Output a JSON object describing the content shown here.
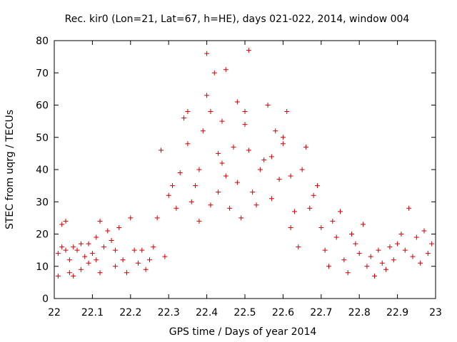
{
  "chart_data": {
    "type": "scatter",
    "title": "Rec. kir0 (Lon=21, Lat=67, h=HE), days 021-022, 2014, window 004",
    "xlabel": "GPS time / Days of year 2014",
    "ylabel": "STEC from uqrg / TECUs",
    "xlim": [
      22,
      23
    ],
    "ylim": [
      0,
      80
    ],
    "xticks": [
      22,
      22.1,
      22.2,
      22.3,
      22.4,
      22.5,
      22.6,
      22.7,
      22.8,
      22.9,
      23
    ],
    "xtick_labels": [
      "22",
      "22.1",
      "22.2",
      "22.3",
      "22.4",
      "22.5",
      "22.6",
      "22.7",
      "22.8",
      "22.9",
      "23"
    ],
    "yticks": [
      0,
      10,
      20,
      30,
      40,
      50,
      60,
      70,
      80
    ],
    "ytick_labels": [
      "0",
      "10",
      "20",
      "30",
      "40",
      "50",
      "60",
      "70",
      "80"
    ],
    "marker": "plus",
    "color": "#cc0000",
    "series": [
      {
        "name": "STEC",
        "points": [
          [
            22.01,
            7
          ],
          [
            22.01,
            14
          ],
          [
            22.02,
            16
          ],
          [
            22.02,
            23
          ],
          [
            22.03,
            24
          ],
          [
            22.03,
            15
          ],
          [
            22.04,
            8
          ],
          [
            22.04,
            12
          ],
          [
            22.05,
            16
          ],
          [
            22.05,
            7
          ],
          [
            22.06,
            15
          ],
          [
            22.07,
            9
          ],
          [
            22.07,
            17
          ],
          [
            22.08,
            13
          ],
          [
            22.09,
            11
          ],
          [
            22.09,
            17
          ],
          [
            22.1,
            14
          ],
          [
            22.11,
            12
          ],
          [
            22.11,
            19
          ],
          [
            22.12,
            8
          ],
          [
            22.12,
            24
          ],
          [
            22.13,
            16
          ],
          [
            22.14,
            21
          ],
          [
            22.15,
            18
          ],
          [
            22.16,
            10
          ],
          [
            22.16,
            15
          ],
          [
            22.17,
            22
          ],
          [
            22.18,
            12
          ],
          [
            22.19,
            8
          ],
          [
            22.2,
            25
          ],
          [
            22.21,
            15
          ],
          [
            22.22,
            11
          ],
          [
            22.23,
            15
          ],
          [
            22.24,
            9
          ],
          [
            22.25,
            12
          ],
          [
            22.26,
            16
          ],
          [
            22.27,
            25
          ],
          [
            22.28,
            46
          ],
          [
            22.29,
            13
          ],
          [
            22.3,
            32
          ],
          [
            22.31,
            35
          ],
          [
            22.32,
            28
          ],
          [
            22.33,
            39
          ],
          [
            22.34,
            56
          ],
          [
            22.35,
            48
          ],
          [
            22.35,
            58
          ],
          [
            22.36,
            30
          ],
          [
            22.37,
            35
          ],
          [
            22.38,
            40
          ],
          [
            22.38,
            24
          ],
          [
            22.39,
            52
          ],
          [
            22.4,
            63
          ],
          [
            22.4,
            76
          ],
          [
            22.41,
            58
          ],
          [
            22.41,
            29
          ],
          [
            22.42,
            70
          ],
          [
            22.43,
            45
          ],
          [
            22.43,
            33
          ],
          [
            22.44,
            55
          ],
          [
            22.44,
            42
          ],
          [
            22.45,
            71
          ],
          [
            22.45,
            38
          ],
          [
            22.46,
            28
          ],
          [
            22.47,
            47
          ],
          [
            22.48,
            61
          ],
          [
            22.48,
            36
          ],
          [
            22.49,
            25
          ],
          [
            22.5,
            58
          ],
          [
            22.5,
            54
          ],
          [
            22.51,
            77
          ],
          [
            22.51,
            46
          ],
          [
            22.52,
            33
          ],
          [
            22.53,
            29
          ],
          [
            22.54,
            40
          ],
          [
            22.55,
            43
          ],
          [
            22.56,
            60
          ],
          [
            22.57,
            44
          ],
          [
            22.57,
            31
          ],
          [
            22.58,
            52
          ],
          [
            22.59,
            37
          ],
          [
            22.6,
            48
          ],
          [
            22.6,
            50
          ],
          [
            22.61,
            58
          ],
          [
            22.62,
            38
          ],
          [
            22.62,
            22
          ],
          [
            22.63,
            27
          ],
          [
            22.64,
            16
          ],
          [
            22.65,
            40
          ],
          [
            22.66,
            47
          ],
          [
            22.67,
            28
          ],
          [
            22.68,
            32
          ],
          [
            22.69,
            35
          ],
          [
            22.7,
            22
          ],
          [
            22.71,
            15
          ],
          [
            22.72,
            10
          ],
          [
            22.73,
            24
          ],
          [
            22.74,
            19
          ],
          [
            22.75,
            27
          ],
          [
            22.76,
            12
          ],
          [
            22.77,
            8
          ],
          [
            22.78,
            20
          ],
          [
            22.79,
            17
          ],
          [
            22.8,
            14
          ],
          [
            22.81,
            23
          ],
          [
            22.82,
            10
          ],
          [
            22.83,
            13
          ],
          [
            22.84,
            7
          ],
          [
            22.85,
            15
          ],
          [
            22.86,
            11
          ],
          [
            22.87,
            9
          ],
          [
            22.88,
            16
          ],
          [
            22.89,
            12
          ],
          [
            22.9,
            17
          ],
          [
            22.91,
            20
          ],
          [
            22.92,
            15
          ],
          [
            22.93,
            28
          ],
          [
            22.94,
            13
          ],
          [
            22.95,
            19
          ],
          [
            22.96,
            11
          ],
          [
            22.97,
            21
          ],
          [
            22.98,
            14
          ],
          [
            22.99,
            17
          ]
        ]
      }
    ]
  }
}
